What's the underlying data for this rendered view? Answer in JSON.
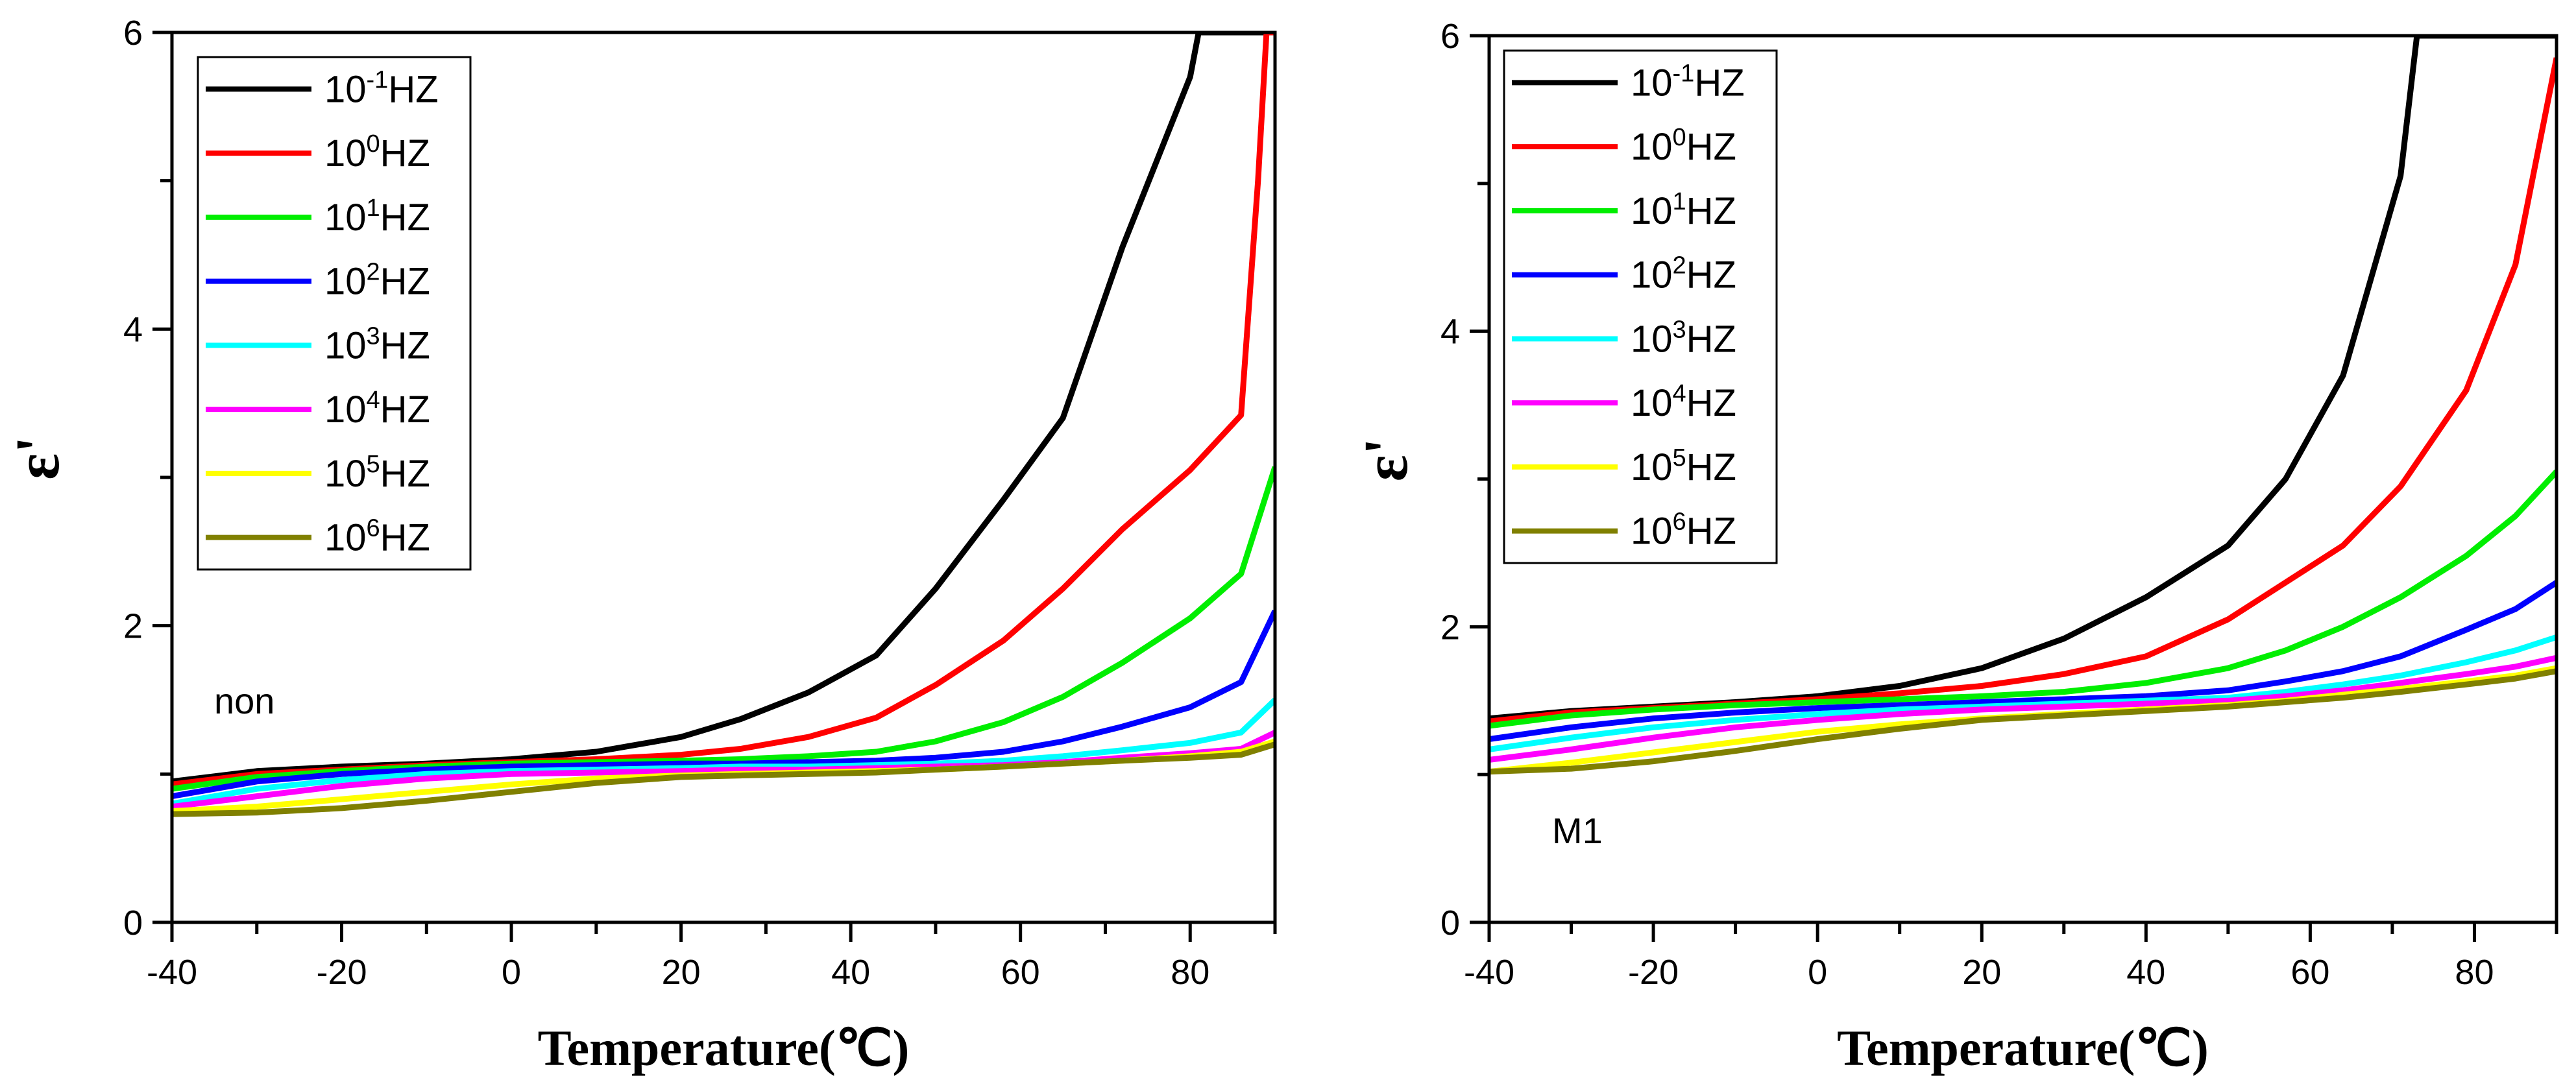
{
  "chart_data": [
    {
      "type": "line",
      "annotation": "non",
      "xlabel": "Temperature(℃)",
      "ylabel": "ε'",
      "xlim": [
        -40,
        90
      ],
      "ylim": [
        0,
        6
      ],
      "xticks": [
        "-40",
        "-20",
        "0",
        "20",
        "40",
        "60",
        "80"
      ],
      "yticks": [
        "0",
        "2",
        "4",
        "6"
      ],
      "legend": {
        "position": "top-left",
        "base": "10",
        "unit": "HZ"
      },
      "series": [
        {
          "name": "10^-1HZ",
          "exp": "-1",
          "color": "#000000",
          "x": [
            -40,
            -30,
            -20,
            -10,
            0,
            10,
            20,
            27,
            35,
            43,
            50,
            58,
            65,
            72,
            80,
            81,
            90
          ],
          "y": [
            0.95,
            1.02,
            1.05,
            1.07,
            1.1,
            1.15,
            1.25,
            1.37,
            1.55,
            1.8,
            2.25,
            2.85,
            3.4,
            4.55,
            5.7,
            6.0,
            6.0
          ]
        },
        {
          "name": "10^0HZ",
          "exp": "0",
          "color": "#ff0000",
          "x": [
            -40,
            -30,
            -20,
            -10,
            0,
            10,
            20,
            27,
            35,
            43,
            50,
            58,
            65,
            72,
            80,
            86,
            88,
            89,
            90
          ],
          "y": [
            0.93,
            1.0,
            1.03,
            1.06,
            1.08,
            1.1,
            1.13,
            1.17,
            1.25,
            1.38,
            1.6,
            1.9,
            2.25,
            2.65,
            3.05,
            3.42,
            5.0,
            6.0,
            6.0
          ]
        },
        {
          "name": "10^1HZ",
          "exp": "1",
          "color": "#00ee00",
          "x": [
            -40,
            -30,
            -20,
            -10,
            0,
            10,
            20,
            27,
            35,
            43,
            50,
            58,
            65,
            72,
            80,
            86,
            90
          ],
          "y": [
            0.9,
            0.98,
            1.02,
            1.05,
            1.07,
            1.08,
            1.09,
            1.1,
            1.12,
            1.15,
            1.22,
            1.35,
            1.52,
            1.75,
            2.05,
            2.35,
            3.07
          ]
        },
        {
          "name": "10^2HZ",
          "exp": "2",
          "color": "#0000ff",
          "x": [
            -40,
            -30,
            -20,
            -10,
            0,
            10,
            20,
            27,
            35,
            43,
            50,
            58,
            65,
            72,
            80,
            86,
            90
          ],
          "y": [
            0.85,
            0.95,
            1.0,
            1.03,
            1.05,
            1.06,
            1.07,
            1.07,
            1.08,
            1.09,
            1.11,
            1.15,
            1.22,
            1.32,
            1.45,
            1.62,
            2.1
          ]
        },
        {
          "name": "10^3HZ",
          "exp": "3",
          "color": "#00ffff",
          "x": [
            -40,
            -30,
            -20,
            -10,
            0,
            10,
            20,
            27,
            35,
            43,
            50,
            58,
            65,
            72,
            80,
            86,
            90
          ],
          "y": [
            0.8,
            0.9,
            0.96,
            1.0,
            1.02,
            1.03,
            1.04,
            1.05,
            1.05,
            1.06,
            1.07,
            1.09,
            1.12,
            1.16,
            1.21,
            1.28,
            1.5
          ]
        },
        {
          "name": "10^4HZ",
          "exp": "4",
          "color": "#ff00ff",
          "x": [
            -40,
            -30,
            -20,
            -10,
            0,
            10,
            20,
            27,
            35,
            43,
            50,
            58,
            65,
            72,
            80,
            86,
            90
          ],
          "y": [
            0.78,
            0.85,
            0.92,
            0.97,
            1.0,
            1.01,
            1.02,
            1.03,
            1.03,
            1.04,
            1.05,
            1.06,
            1.08,
            1.11,
            1.14,
            1.17,
            1.28
          ]
        },
        {
          "name": "10^5HZ",
          "exp": "5",
          "color": "#ffff00",
          "x": [
            -40,
            -30,
            -20,
            -10,
            0,
            10,
            20,
            27,
            35,
            43,
            50,
            58,
            65,
            72,
            80,
            86,
            90
          ],
          "y": [
            0.75,
            0.78,
            0.83,
            0.88,
            0.93,
            0.97,
            0.99,
            1.0,
            1.01,
            1.02,
            1.03,
            1.05,
            1.07,
            1.09,
            1.12,
            1.15,
            1.22
          ]
        },
        {
          "name": "10^6HZ",
          "exp": "6",
          "color": "#808000",
          "x": [
            -40,
            -30,
            -20,
            -10,
            0,
            10,
            20,
            27,
            35,
            43,
            50,
            58,
            65,
            72,
            80,
            86,
            90
          ],
          "y": [
            0.73,
            0.74,
            0.77,
            0.82,
            0.88,
            0.94,
            0.98,
            0.99,
            1.0,
            1.01,
            1.03,
            1.05,
            1.07,
            1.09,
            1.11,
            1.13,
            1.2
          ]
        }
      ]
    },
    {
      "type": "line",
      "annotation": "M1",
      "xlabel": "Temperature(℃)",
      "ylabel": "ε'",
      "xlim": [
        -40,
        90
      ],
      "ylim": [
        0,
        6
      ],
      "xticks": [
        "-40",
        "-20",
        "0",
        "20",
        "40",
        "60",
        "80"
      ],
      "yticks": [
        "0",
        "2",
        "4",
        "6"
      ],
      "legend": {
        "position": "top-left",
        "base": "10",
        "unit": "HZ"
      },
      "series": [
        {
          "name": "10^-1HZ",
          "exp": "-1",
          "color": "#000000",
          "x": [
            -40,
            -30,
            -20,
            -10,
            0,
            10,
            20,
            30,
            40,
            50,
            57,
            64,
            71,
            73,
            90
          ],
          "y": [
            1.38,
            1.43,
            1.46,
            1.49,
            1.53,
            1.6,
            1.72,
            1.92,
            2.2,
            2.55,
            3.0,
            3.7,
            5.05,
            6.0,
            6.0
          ]
        },
        {
          "name": "10^0HZ",
          "exp": "0",
          "color": "#ff0000",
          "x": [
            -40,
            -30,
            -20,
            -10,
            0,
            10,
            20,
            30,
            40,
            50,
            57,
            64,
            71,
            79,
            85,
            90
          ],
          "y": [
            1.36,
            1.42,
            1.45,
            1.48,
            1.51,
            1.55,
            1.6,
            1.68,
            1.8,
            2.05,
            2.3,
            2.55,
            2.95,
            3.6,
            4.45,
            5.85
          ]
        },
        {
          "name": "10^1HZ",
          "exp": "1",
          "color": "#00ee00",
          "x": [
            -40,
            -30,
            -20,
            -10,
            0,
            10,
            20,
            30,
            40,
            50,
            57,
            64,
            71,
            79,
            85,
            90
          ],
          "y": [
            1.33,
            1.4,
            1.44,
            1.47,
            1.49,
            1.51,
            1.53,
            1.56,
            1.62,
            1.72,
            1.84,
            2.0,
            2.2,
            2.48,
            2.75,
            3.05
          ]
        },
        {
          "name": "10^2HZ",
          "exp": "2",
          "color": "#0000ff",
          "x": [
            -40,
            -30,
            -20,
            -10,
            0,
            10,
            20,
            30,
            40,
            50,
            57,
            64,
            71,
            79,
            85,
            90
          ],
          "y": [
            1.24,
            1.32,
            1.38,
            1.42,
            1.45,
            1.47,
            1.49,
            1.51,
            1.53,
            1.57,
            1.63,
            1.7,
            1.8,
            1.98,
            2.12,
            2.3
          ]
        },
        {
          "name": "10^3HZ",
          "exp": "3",
          "color": "#00ffff",
          "x": [
            -40,
            -30,
            -20,
            -10,
            0,
            10,
            20,
            30,
            40,
            50,
            57,
            64,
            71,
            79,
            85,
            90
          ],
          "y": [
            1.17,
            1.25,
            1.32,
            1.37,
            1.41,
            1.44,
            1.46,
            1.48,
            1.5,
            1.52,
            1.56,
            1.61,
            1.67,
            1.76,
            1.84,
            1.93
          ]
        },
        {
          "name": "10^4HZ",
          "exp": "4",
          "color": "#ff00ff",
          "x": [
            -40,
            -30,
            -20,
            -10,
            0,
            10,
            20,
            30,
            40,
            50,
            57,
            64,
            71,
            79,
            85,
            90
          ],
          "y": [
            1.1,
            1.17,
            1.25,
            1.32,
            1.37,
            1.41,
            1.44,
            1.46,
            1.48,
            1.5,
            1.53,
            1.57,
            1.62,
            1.68,
            1.73,
            1.79
          ]
        },
        {
          "name": "10^5HZ",
          "exp": "5",
          "color": "#ffff00",
          "x": [
            -40,
            -30,
            -20,
            -10,
            0,
            10,
            20,
            30,
            40,
            50,
            57,
            64,
            71,
            79,
            85,
            90
          ],
          "y": [
            1.02,
            1.08,
            1.15,
            1.22,
            1.29,
            1.34,
            1.38,
            1.41,
            1.44,
            1.47,
            1.5,
            1.54,
            1.58,
            1.63,
            1.67,
            1.72
          ]
        },
        {
          "name": "10^6HZ",
          "exp": "6",
          "color": "#808000",
          "x": [
            -40,
            -30,
            -20,
            -10,
            0,
            10,
            20,
            30,
            40,
            50,
            57,
            64,
            71,
            79,
            85,
            90
          ],
          "y": [
            1.02,
            1.04,
            1.09,
            1.16,
            1.24,
            1.31,
            1.37,
            1.4,
            1.43,
            1.46,
            1.49,
            1.52,
            1.56,
            1.61,
            1.65,
            1.7
          ]
        }
      ]
    }
  ]
}
